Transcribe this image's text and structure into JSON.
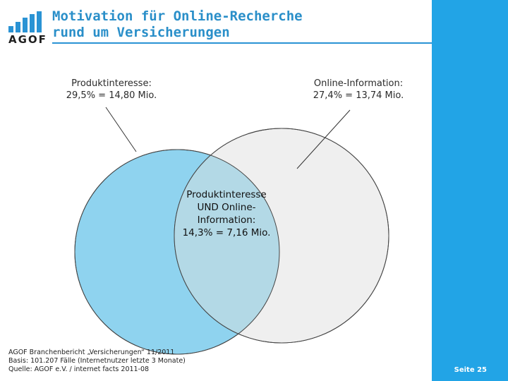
{
  "logo": {
    "text": "AGOF",
    "color": "#2a93d4"
  },
  "header": {
    "title_line1": "Motivation für Online-Recherche",
    "title_line2": "rund um Versicherungen"
  },
  "diagram": {
    "sets": [
      {
        "label_line1": "Produktinteresse:",
        "label_line2": "29,5% = 14,80 Mio.",
        "share_percent": 29.5,
        "persons": "14,80 Mio.",
        "color": "#8fd3ef"
      },
      {
        "label_line1": "Online-Information:",
        "label_line2": "27,4% = 13,74 Mio.",
        "share_percent": 27.4,
        "persons": "13,74 Mio.",
        "color": "#efefef"
      }
    ],
    "intersection": {
      "label_line1": "Produktinteresse",
      "label_line2": "UND Online-",
      "label_line3": "Information:",
      "label_line4": "14,3% = 7,16 Mio.",
      "share_percent": 14.3,
      "persons": "7,16 Mio.",
      "color": "#b3d9e6"
    }
  },
  "source": {
    "line1": "AGOF Branchenbericht „Versicherungen“ 11/2011",
    "line2": "Basis: 101.207 Fälle (Internetnutzer letzte 3 Monate)",
    "line3": "Quelle: AGOF e.V. / internet facts 2011-08"
  },
  "footer": {
    "page_label": "Seite 25"
  },
  "colors": {
    "accent": "#2a93d4",
    "sidebar": "#22a4e6",
    "title": "#2a8fc9"
  }
}
